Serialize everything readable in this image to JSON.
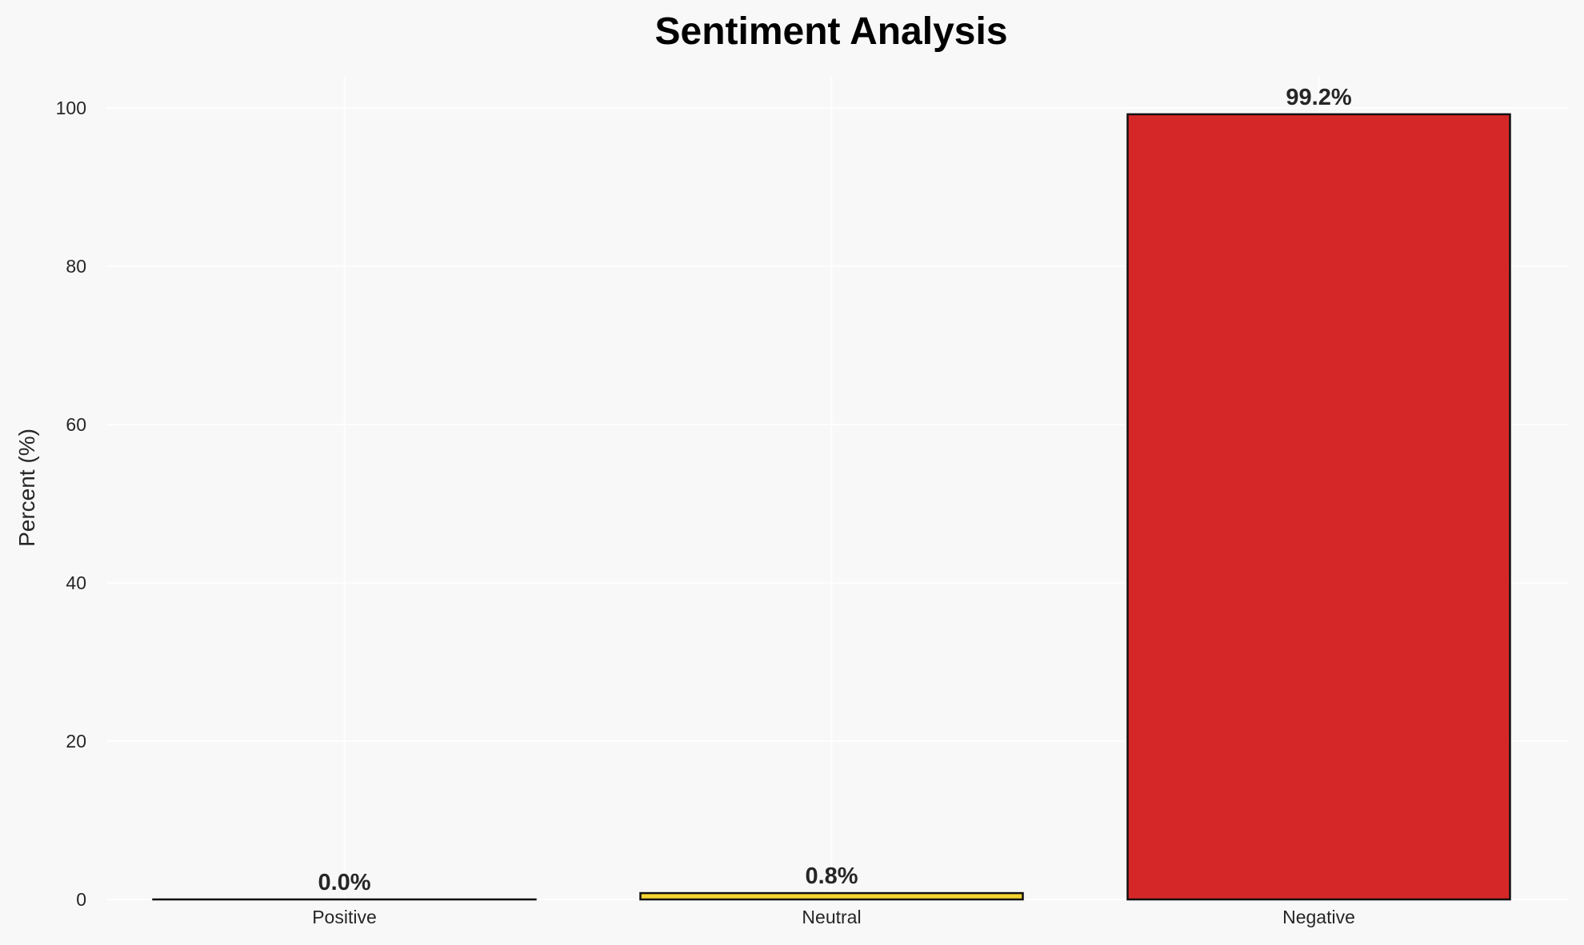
{
  "chart_data": {
    "type": "bar",
    "title": "Sentiment Analysis",
    "xlabel": "",
    "ylabel": "Percent (%)",
    "categories": [
      "Positive",
      "Neutral",
      "Negative"
    ],
    "values": [
      0.0,
      0.8,
      99.2
    ],
    "data_labels": [
      "0.0%",
      "0.8%",
      "99.2%"
    ],
    "colors": [
      "#2ca02c",
      "#f5d432",
      "#d62728"
    ],
    "ylim": [
      0,
      104
    ],
    "yticks": [
      0,
      20,
      40,
      60,
      80,
      100
    ],
    "grid": true,
    "background": "#f8f8f8"
  }
}
